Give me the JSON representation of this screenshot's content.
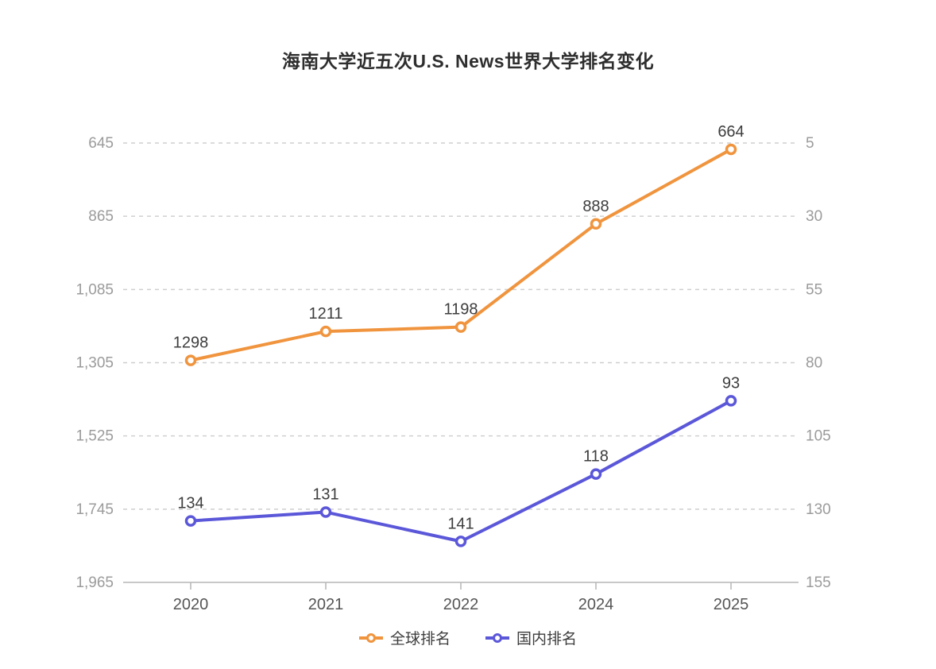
{
  "title": "海南大学近五次U.S. News世界大学排名变化",
  "chart_data": {
    "type": "line",
    "title": "海南大学近五次U.S. News世界大学排名变化",
    "categories": [
      "2020",
      "2021",
      "2022",
      "2024",
      "2025"
    ],
    "series": [
      {
        "name": "全球排名",
        "id": "global-ranking",
        "axis": "left",
        "color": "#F0943E",
        "values": [
          1298,
          1211,
          1198,
          888,
          664
        ],
        "point_labels": [
          "1298",
          "1211",
          "1198",
          "888",
          "664"
        ]
      },
      {
        "name": "国内排名",
        "id": "domestic-ranking",
        "axis": "right",
        "color": "#5B57D9",
        "values": [
          134,
          131,
          141,
          118,
          93
        ],
        "point_labels": [
          "134",
          "131",
          "141",
          "118",
          "93"
        ]
      }
    ],
    "y_axis_left": {
      "min": 645,
      "max": 1965,
      "inverted": true,
      "ticks": [
        645,
        865,
        1085,
        1305,
        1525,
        1745,
        1965
      ],
      "tick_labels": [
        "645",
        "865",
        "1,085",
        "1,305",
        "1,525",
        "1,745",
        "1,965"
      ]
    },
    "y_axis_right": {
      "min": 5,
      "max": 155,
      "inverted": true,
      "ticks": [
        5,
        30,
        55,
        80,
        105,
        130,
        155
      ],
      "tick_labels": [
        "5",
        "30",
        "55",
        "80",
        "105",
        "130",
        "155"
      ]
    },
    "grid": "horizontal-dashed",
    "legend_position": "bottom",
    "style": {
      "grid_line_color": "#cfcfcf",
      "axis_line_color": "#b5b5b5",
      "y_tick_label_color": "#9b9b9b",
      "x_tick_label_color": "#555555",
      "point_label_color": "#3d3d3d",
      "marker_fill": "#ffffff"
    }
  }
}
